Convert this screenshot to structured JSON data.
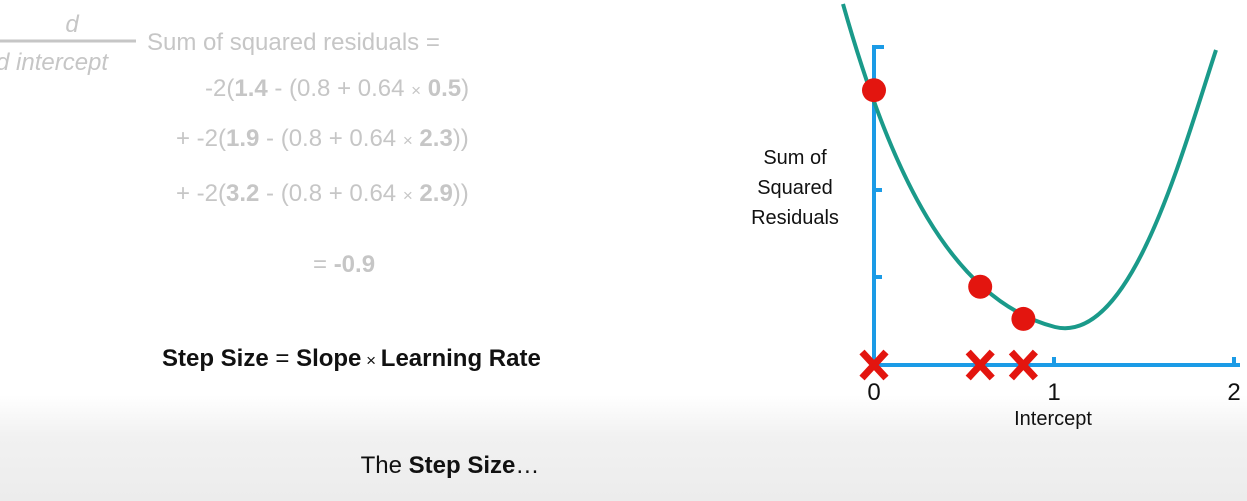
{
  "derivative": {
    "numerator": "d",
    "denominator": "d intercept",
    "label": "Sum of squared residuals =",
    "lines": [
      [
        "-2(",
        "1.4",
        " - (0.8 + 0.64 ",
        "×",
        " ",
        "0.5",
        ")"
      ],
      [
        "+ -2(",
        "1.9",
        " - (0.8 + 0.64 ",
        "×",
        " ",
        "2.3",
        "))"
      ],
      [
        "+ -2(",
        "3.2",
        " - (0.8 + 0.64 ",
        "×",
        " ",
        "2.9",
        "))"
      ]
    ],
    "result": [
      "= ",
      "-0.9"
    ]
  },
  "step_size": [
    "Step Size",
    " = ",
    "Slope",
    " × ",
    "Learning Rate"
  ],
  "caption": [
    "The ",
    "Step Size",
    "…"
  ],
  "plot": {
    "y_label": [
      "Sum of",
      "Squared",
      "Residuals"
    ],
    "x_label": "Intercept",
    "xlim": [
      0,
      2
    ],
    "xticks": [
      0,
      1,
      2
    ],
    "ylim": [
      0,
      3.68
    ],
    "points": {
      "x": [
        0,
        0.59,
        0.83
      ],
      "y": [
        3.16,
        0.9,
        0.53
      ]
    }
  }
}
